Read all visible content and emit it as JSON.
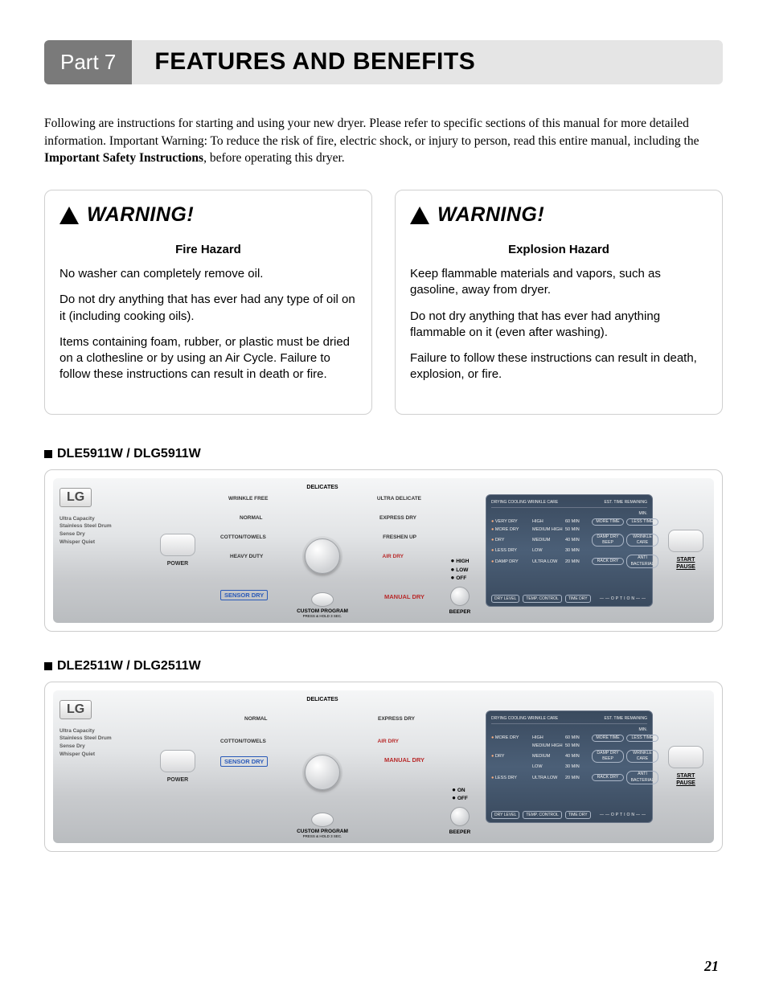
{
  "header": {
    "part": "Part 7",
    "title": "FEATURES AND BENEFITS"
  },
  "intro": {
    "text1": "Following are instructions for starting and using your new dryer.  Please refer to specific sections of this manual for more detailed information.  Important Warning:  To reduce the risk of fire, electric shock, or injury to person, read this entire manual, including the ",
    "bold": "Important Safety Instructions",
    "text2": ", before operating this dryer."
  },
  "warning_label": "WARNING!",
  "warning_fire": {
    "title": "Fire Hazard",
    "p1": "No washer can completely remove oil.",
    "p2": "Do not dry anything that has ever had any type of oil on it (including cooking oils).",
    "p3": "Items containing foam, rubber, or plastic  must be dried on a clothesline or by using an Air Cycle. Failure to follow these instructions can result in death or fire."
  },
  "warning_explosion": {
    "title": "Explosion Hazard",
    "p1": "Keep flammable materials and vapors, such as gasoline, away from dryer.",
    "p2": "Do not dry anything that has ever had anything flammable on it (even after washing).",
    "p3": "Failure to follow these instructions can result in death, explosion, or fire."
  },
  "model1": {
    "heading": "DLE5911W / DLG5911W",
    "brand": "LG",
    "brand_lines": [
      "Ultra Capacity",
      "Stainless Steel Drum",
      "Sense Dry",
      "Whisper Quiet"
    ],
    "power_label": "POWER",
    "dial_title": "DELICATES",
    "dial_opts_left": [
      "WRINKLE FREE",
      "NORMAL",
      "COTTON/TOWELS",
      "HEAVY DUTY"
    ],
    "dial_opts_right": [
      "ULTRA DELICATE",
      "EXPRESS DRY",
      "FRESHEN UP",
      "AIR DRY"
    ],
    "sensor_dry": "SENSOR DRY",
    "manual_dry": "MANUAL DRY",
    "custom_program": "CUSTOM PROGRAM",
    "custom_sub": "PRESS & HOLD 3 SEC.",
    "beeper_levels": [
      "HIGH",
      "LOW",
      "OFF"
    ],
    "beeper_label": "BEEPER",
    "lcd_top_left": "DRYING   COOLING   WRINKLE CARE",
    "lcd_top_right": "EST. TIME REMAINING",
    "lcd_min": "MIN.",
    "lcd_rows": [
      [
        "VERY DRY",
        "HIGH",
        "60 MIN",
        "MORE TIME",
        "LESS TIME"
      ],
      [
        "MORE DRY",
        "MEDIUM HIGH",
        "50 MIN",
        "",
        ""
      ],
      [
        "DRY",
        "MEDIUM",
        "40 MIN",
        "DAMP DRY BEEP",
        "WRINKLE CARE"
      ],
      [
        "LESS DRY",
        "LOW",
        "30 MIN",
        "",
        ""
      ],
      [
        "DAMP DRY",
        "ULTRA LOW",
        "20 MIN",
        "RACK DRY",
        "ANTI BACTERIAL"
      ]
    ],
    "lcd_btns": [
      "DRY LEVEL",
      "TEMP. CONTROL",
      "TIME DRY"
    ],
    "lcd_option": "OPTION",
    "start_label1": "START",
    "start_label2": "PAUSE"
  },
  "model2": {
    "heading": "DLE2511W / DLG2511W",
    "brand": "LG",
    "brand_lines": [
      "Ultra Capacity",
      "Stainless Steel Drum",
      "Sense Dry",
      "Whisper Quiet"
    ],
    "power_label": "POWER",
    "dial_title": "DELICATES",
    "dial_opts_left": [
      "NORMAL",
      "COTTON/TOWELS"
    ],
    "dial_opts_right": [
      "EXPRESS DRY",
      "AIR DRY"
    ],
    "sensor_dry": "SENSOR DRY",
    "manual_dry": "MANUAL DRY",
    "custom_program": "CUSTOM PROGRAM",
    "custom_sub": "PRESS & HOLD 3 SEC.",
    "beeper_levels": [
      "ON",
      "OFF"
    ],
    "beeper_label": "BEEPER",
    "lcd_top_left": "DRYING   COOLING   WRINKLE CARE",
    "lcd_top_right": "EST. TIME REMAINING",
    "lcd_min": "MIN.",
    "lcd_rows": [
      [
        "MORE DRY",
        "HIGH",
        "60 MIN",
        "MORE TIME",
        "LESS TIME"
      ],
      [
        "",
        "MEDIUM HIGH",
        "50 MIN",
        "",
        ""
      ],
      [
        "DRY",
        "MEDIUM",
        "40 MIN",
        "DAMP DRY BEEP",
        "WRINKLE CARE"
      ],
      [
        "",
        "LOW",
        "30 MIN",
        "",
        ""
      ],
      [
        "LESS DRY",
        "ULTRA LOW",
        "20 MIN",
        "RACK DRY",
        "ANTI BACTERIAL"
      ]
    ],
    "lcd_btns": [
      "DRY LEVEL",
      "TEMP. CONTROL",
      "TIME DRY"
    ],
    "lcd_option": "OPTION",
    "start_label1": "START",
    "start_label2": "PAUSE"
  },
  "page_number": "21",
  "colors": {
    "part_badge_bg": "#7a7a7a",
    "title_bg": "#e5e5e5",
    "sensor_blue": "#2a5ab8",
    "manual_red": "#b82a2a",
    "lcd_bg": "#465a72"
  }
}
